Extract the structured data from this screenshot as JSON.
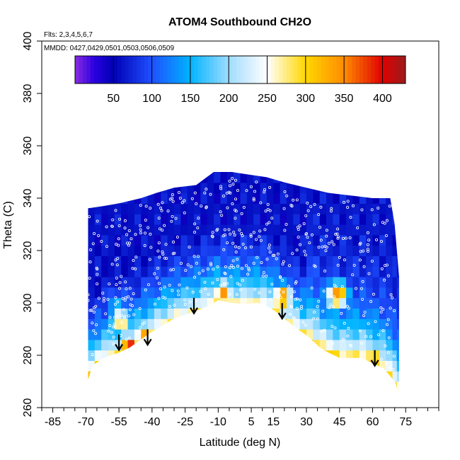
{
  "chart_data": {
    "type": "heatmap",
    "title": "ATOM4 Southbound CH2O",
    "flights_label": "Flts: 2,3,4,5,6,7",
    "dates_label": "MMDD: 0427,0429,0501,0503,0506,0509",
    "xlabel": "Latitude (deg N)",
    "ylabel": "Theta (C)",
    "xlim": [
      -90,
      90
    ],
    "ylim": [
      260,
      400
    ],
    "x_ticks": [
      -85,
      -70,
      -55,
      -40,
      -25,
      -10,
      5,
      15,
      30,
      45,
      60,
      75
    ],
    "x_tick_labels": [
      "-85",
      "-70",
      "-55",
      "-40",
      "-25",
      "-10",
      "5",
      "15",
      "30",
      "45",
      "60",
      "75"
    ],
    "y_ticks": [
      260,
      280,
      300,
      320,
      340,
      360,
      380,
      400
    ],
    "y_tick_labels": [
      "260",
      "280",
      "300",
      "320",
      "340",
      "360",
      "380",
      "400"
    ],
    "colorbar": {
      "range": [
        0,
        430
      ],
      "ticks": [
        50,
        100,
        150,
        200,
        250,
        300,
        350,
        400
      ],
      "tick_labels": [
        "50",
        "100",
        "150",
        "200",
        "250",
        "300",
        "350",
        "400"
      ],
      "stops": [
        {
          "v": 0,
          "color": "#8a2be2"
        },
        {
          "v": 25,
          "color": "#2a00e0"
        },
        {
          "v": 50,
          "color": "#0000b4"
        },
        {
          "v": 100,
          "color": "#1e50ff"
        },
        {
          "v": 150,
          "color": "#00b4ff"
        },
        {
          "v": 200,
          "color": "#a0dcff"
        },
        {
          "v": 250,
          "color": "#ffffff"
        },
        {
          "v": 300,
          "color": "#ffd700"
        },
        {
          "v": 350,
          "color": "#ff8c00"
        },
        {
          "v": 400,
          "color": "#e00000"
        },
        {
          "v": 430,
          "color": "#9b1c1c"
        }
      ]
    },
    "lower_boundary": [
      [
        -70,
        268
      ],
      [
        -67,
        276
      ],
      [
        -62,
        279
      ],
      [
        -55,
        281
      ],
      [
        -50,
        283
      ],
      [
        -45,
        286
      ],
      [
        -40,
        289
      ],
      [
        -30,
        294
      ],
      [
        -20,
        297
      ],
      [
        -14,
        299
      ],
      [
        -10,
        301
      ],
      [
        -4,
        300
      ],
      [
        2,
        299.5
      ],
      [
        8,
        300
      ],
      [
        14,
        298
      ],
      [
        20,
        294
      ],
      [
        26,
        290
      ],
      [
        31,
        287
      ],
      [
        36,
        283
      ],
      [
        40,
        281
      ],
      [
        45,
        279
      ],
      [
        50,
        279
      ],
      [
        55,
        279
      ],
      [
        60,
        277
      ],
      [
        65,
        275
      ],
      [
        70,
        270
      ],
      [
        72,
        265
      ]
    ],
    "upper_boundary": [
      [
        -70,
        336
      ],
      [
        -62,
        337
      ],
      [
        -55,
        338
      ],
      [
        -45,
        340
      ],
      [
        -38,
        342
      ],
      [
        -30,
        344
      ],
      [
        -20,
        345
      ],
      [
        -12,
        350
      ],
      [
        -4,
        350
      ],
      [
        4,
        349
      ],
      [
        12,
        348
      ],
      [
        20,
        346
      ],
      [
        30,
        344
      ],
      [
        40,
        342
      ],
      [
        50,
        341
      ],
      [
        60,
        340
      ],
      [
        68,
        340
      ],
      [
        70,
        330
      ],
      [
        71,
        320
      ],
      [
        72,
        310
      ]
    ],
    "latitude_samples": [
      -69,
      -66,
      -63,
      -60,
      -57,
      -54,
      -51,
      -48,
      -45,
      -42,
      -39,
      -36,
      -33,
      -30,
      -27,
      -24,
      -21,
      -18,
      -15,
      -12,
      -9,
      -6,
      -3,
      0,
      3,
      6,
      9,
      12,
      15,
      18,
      21,
      24,
      27,
      30,
      33,
      36,
      39,
      42,
      45,
      48,
      51,
      54,
      57,
      60,
      63,
      66,
      69,
      71
    ],
    "theta_samples": [
      266,
      270,
      274,
      278,
      282,
      286,
      290,
      294,
      298,
      302,
      306,
      310,
      314,
      318,
      322,
      326,
      330,
      334,
      338,
      342,
      346,
      350
    ],
    "features": [
      {
        "name": "polar-south-mid-cell",
        "lat": -56,
        "theta": 300,
        "value": 150
      },
      {
        "name": "south-surface-high",
        "lat": -50,
        "theta": 283,
        "value": 400
      },
      {
        "name": "south-surface-high-2",
        "lat": -44,
        "theta": 287,
        "value": 330
      },
      {
        "name": "south-midlat-cell",
        "lat": -54,
        "theta": 293,
        "value": 300
      },
      {
        "name": "equator-plume",
        "lat": -8,
        "theta": 304,
        "value": 330
      },
      {
        "name": "nh-subtropic-plume",
        "lat": 19,
        "theta": 302,
        "value": 360
      },
      {
        "name": "nh-midlat-cell",
        "lat": 44,
        "theta": 303,
        "value": 370
      },
      {
        "name": "arctic-low-cell",
        "lat": 60,
        "theta": 280,
        "value": 300
      }
    ],
    "arrows": [
      {
        "lat": -55,
        "theta": 282
      },
      {
        "lat": -42,
        "theta": 284
      },
      {
        "lat": -21,
        "theta": 296
      },
      {
        "lat": 19,
        "theta": 294
      },
      {
        "lat": 61,
        "theta": 276
      }
    ]
  }
}
